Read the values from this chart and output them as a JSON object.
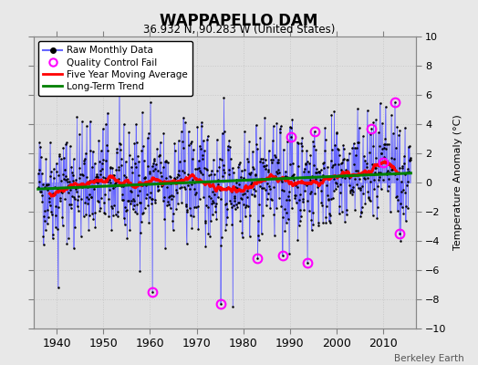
{
  "title": "WAPPAPELLO DAM",
  "subtitle": "36.932 N, 90.283 W (United States)",
  "ylabel": "Temperature Anomaly (°C)",
  "attribution": "Berkeley Earth",
  "xlim": [
    1935,
    2017
  ],
  "ylim": [
    -10,
    10
  ],
  "yticks": [
    -10,
    -8,
    -6,
    -4,
    -2,
    0,
    2,
    4,
    6,
    8,
    10
  ],
  "xticks": [
    1940,
    1950,
    1960,
    1970,
    1980,
    1990,
    2000,
    2010
  ],
  "start_year": 1936,
  "end_year": 2015,
  "seed": 42,
  "bg_color": "#e8e8e8",
  "plot_bg_color": "#e0e0e0",
  "grid_color": "#c8c8c8",
  "raw_line_color": "#6666ff",
  "raw_dot_color": "black",
  "moving_avg_color": "red",
  "trend_color": "green",
  "qc_fail_color": "magenta",
  "legend_labels": [
    "Raw Monthly Data",
    "Quality Control Fail",
    "Five Year Moving Average",
    "Long-Term Trend"
  ]
}
